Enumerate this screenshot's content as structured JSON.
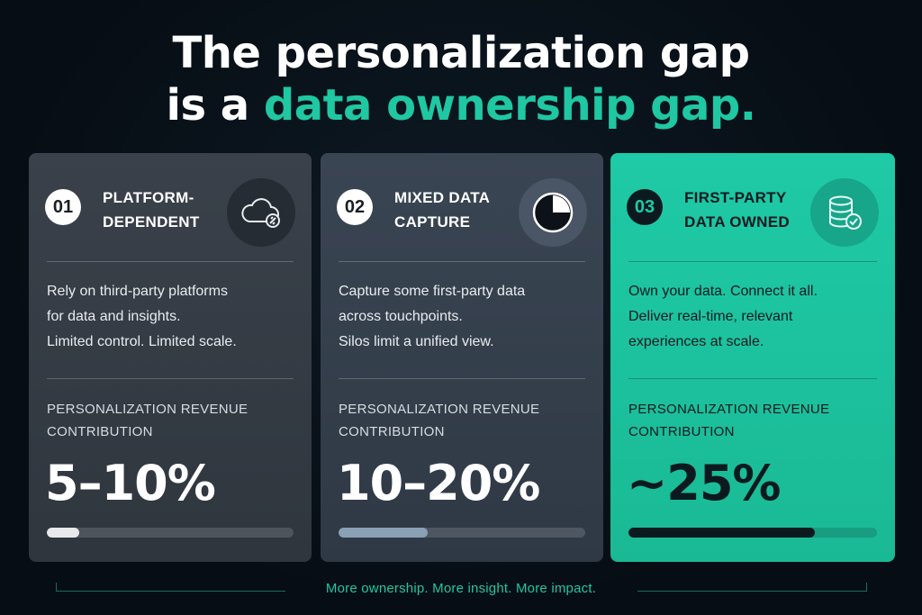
{
  "headline": {
    "line1": "The personalization gap",
    "line2_prefix": "is a",
    "line2_accent": "data ownership gap."
  },
  "colors": {
    "accent": "#1fc7a2",
    "dark": "#0c1a20"
  },
  "cards": [
    {
      "number": "01",
      "title_line1": "PLATFORM-",
      "title_line2": "DEPENDENT",
      "icon": "cloud-link-icon",
      "description": [
        "Rely on third-party platforms",
        "for data and insights.",
        "Limited control. Limited scale."
      ],
      "metric_label_line1": "PERSONALIZATION REVENUE",
      "metric_label_line2": "CONTRIBUTION",
      "metric": "5–10%",
      "progress": 0.13
    },
    {
      "number": "02",
      "title_line1": "MIXED DATA",
      "title_line2": "CAPTURE",
      "icon": "pie-chart-icon",
      "description": [
        "Capture some first-party data",
        "across touchpoints.",
        "Silos limit a unified view."
      ],
      "metric_label_line1": "PERSONALIZATION REVENUE",
      "metric_label_line2": "CONTRIBUTION",
      "metric": "10–20%",
      "progress": 0.36
    },
    {
      "number": "03",
      "title_line1": "FIRST-PARTY",
      "title_line2": "DATA OWNED",
      "icon": "database-check-icon",
      "description": [
        "Own your data. Connect it all.",
        "Deliver real-time, relevant",
        "experiences at scale."
      ],
      "metric_label_line1": "PERSONALIZATION REVENUE",
      "metric_label_line2": "CONTRIBUTION",
      "metric": "~25%",
      "progress": 0.75
    }
  ],
  "footer": "More ownership. More insight. More impact."
}
